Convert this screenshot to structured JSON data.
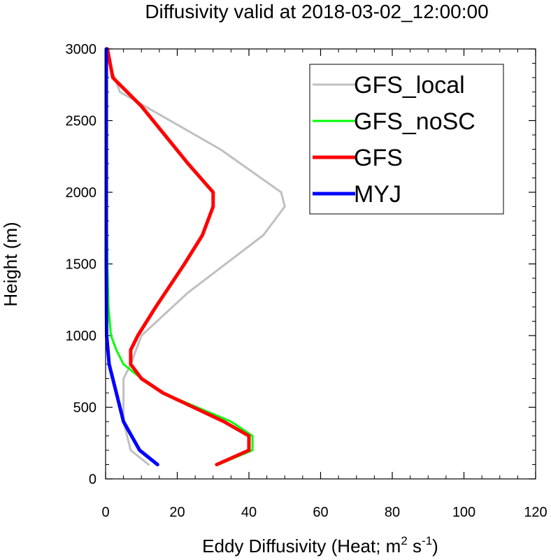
{
  "chart_data": {
    "type": "line",
    "title": "Diffusivity valid at 2018-03-02_12:00:00",
    "xlabel": {
      "text": "Eddy Diffusivity (Heat; m",
      "sup1": "2",
      "mid": " s",
      "sup2": "-1",
      "end": ")"
    },
    "ylabel": "Height (m)",
    "xlim": [
      0,
      120
    ],
    "ylim": [
      0,
      3000
    ],
    "xticks": [
      0,
      20,
      40,
      60,
      80,
      100,
      120
    ],
    "xtick_labels": [
      "0",
      "20",
      "40",
      "60",
      "80",
      "100",
      "120"
    ],
    "yticks": [
      0,
      500,
      1000,
      1500,
      2000,
      2500,
      3000
    ],
    "ytick_labels": [
      "0",
      "500",
      "1000",
      "1500",
      "2000",
      "2500",
      "3000"
    ],
    "grid": false,
    "legend_position": "top-right",
    "series": [
      {
        "name": "GFS_local",
        "color": "#c0c0c0",
        "points": [
          [
            12,
            100
          ],
          [
            7,
            200
          ],
          [
            5,
            400
          ],
          [
            5,
            700
          ],
          [
            7,
            800
          ],
          [
            10,
            1000
          ],
          [
            23,
            1300
          ],
          [
            44,
            1700
          ],
          [
            50,
            1900
          ],
          [
            49,
            2000
          ],
          [
            32,
            2300
          ],
          [
            4,
            2700
          ],
          [
            1,
            2900
          ],
          [
            0.5,
            3000
          ]
        ]
      },
      {
        "name": "GFS_noSC",
        "color": "#00ff00",
        "points": [
          [
            31.5,
            100
          ],
          [
            41,
            200
          ],
          [
            41,
            300
          ],
          [
            35,
            400
          ],
          [
            16,
            600
          ],
          [
            10,
            700
          ],
          [
            5,
            800
          ],
          [
            3,
            900
          ],
          [
            1.5,
            1000
          ],
          [
            0.8,
            1200
          ],
          [
            0.5,
            1500
          ],
          [
            0.3,
            2000
          ],
          [
            0.2,
            2500
          ],
          [
            0.2,
            3000
          ]
        ]
      },
      {
        "name": "GFS",
        "color": "#ff0000",
        "points": [
          [
            31,
            100
          ],
          [
            40,
            200
          ],
          [
            40,
            300
          ],
          [
            33,
            400
          ],
          [
            16,
            600
          ],
          [
            10,
            700
          ],
          [
            7,
            800
          ],
          [
            7,
            900
          ],
          [
            9,
            1000
          ],
          [
            14,
            1200
          ],
          [
            22,
            1500
          ],
          [
            27,
            1700
          ],
          [
            30,
            1900
          ],
          [
            30,
            2000
          ],
          [
            23,
            2200
          ],
          [
            10,
            2600
          ],
          [
            2,
            2800
          ],
          [
            0.5,
            3000
          ]
        ]
      },
      {
        "name": "MYJ",
        "color": "#0000ff",
        "points": [
          [
            14.5,
            100
          ],
          [
            9.5,
            200
          ],
          [
            5,
            400
          ],
          [
            3,
            600
          ],
          [
            1,
            800
          ],
          [
            0.3,
            1000
          ],
          [
            0.2,
            1500
          ],
          [
            0.2,
            2000
          ],
          [
            0.2,
            2500
          ],
          [
            0.2,
            3000
          ]
        ]
      }
    ]
  }
}
